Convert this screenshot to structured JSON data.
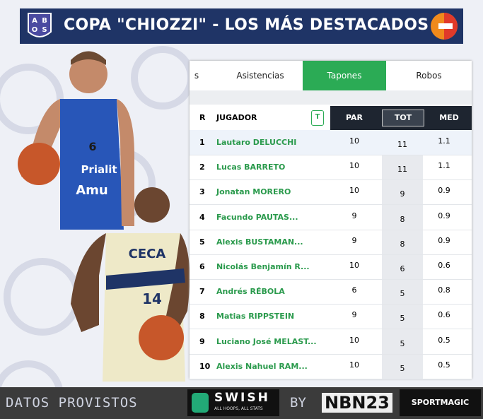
{
  "header": {
    "logo": [
      "A",
      "B",
      "O",
      "S"
    ],
    "title": "COPA \"CHIOZZI\" - LOS MÁS DESTACADOS"
  },
  "tabs": [
    "s",
    "Asistencias",
    "Tapones",
    "Robos"
  ],
  "table": {
    "columns": [
      "R",
      "JUGADOR",
      "PAR",
      "TOT",
      "MED"
    ],
    "badge": "T",
    "rows": [
      [
        1,
        "Lautaro DELUCCHI",
        10,
        11,
        1.1
      ],
      [
        2,
        "Lucas BARRETO",
        10,
        11,
        1.1
      ],
      [
        3,
        "Jonatan MORERO",
        10,
        9,
        0.9
      ],
      [
        4,
        "Facundo PAUTAS...",
        9,
        8,
        0.9
      ],
      [
        5,
        "Alexis BUSTAMAN...",
        9,
        8,
        0.9
      ],
      [
        6,
        "Nicolás Benjamín R...",
        10,
        6,
        0.6
      ],
      [
        7,
        "Andrés RÉBOLA",
        6,
        5,
        0.8
      ],
      [
        8,
        "Matias RIPPSTEIN",
        9,
        5,
        0.6
      ],
      [
        9,
        "Luciano José MELAST...",
        10,
        5,
        0.5
      ],
      [
        10,
        "Alexis Nahuel RAM...",
        10,
        5,
        0.5
      ]
    ]
  },
  "players": {
    "jersey1": "6",
    "sponsor1": "Prialit",
    "sponsor2": "Amu",
    "jersey2": "14",
    "team2": "CECA"
  },
  "footer": {
    "provided": "DATOS PROVISTOS",
    "swish": "SWISH",
    "swish_tag": "ALL HOOPS, ALL STATS",
    "by": "BY",
    "nbn": "NBN23",
    "sportmagic": "SPORTMAGIC"
  }
}
